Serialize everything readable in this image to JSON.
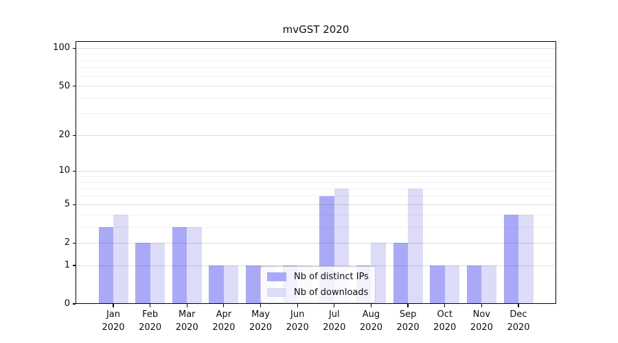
{
  "title": "mvGST 2020",
  "chart_data": {
    "type": "bar",
    "title": "mvGST 2020",
    "yscale": "log1p",
    "ylim": [
      0,
      114
    ],
    "yticks": [
      100,
      50,
      20,
      10,
      5,
      2,
      1,
      0
    ],
    "grid_major": [
      1,
      2,
      5,
      10,
      20,
      50,
      100
    ],
    "grid_minor": [
      3,
      4,
      6,
      7,
      8,
      9,
      30,
      40,
      60,
      70,
      80,
      90
    ],
    "categories": [
      "Jan",
      "Feb",
      "Mar",
      "Apr",
      "May",
      "Jun",
      "Jul",
      "Aug",
      "Sep",
      "Oct",
      "Nov",
      "Dec"
    ],
    "category_year": "2020",
    "legend_position": "lower center",
    "series": [
      {
        "name": "Nb of distinct IPs",
        "color": "#a9a9f8",
        "values": [
          3,
          2,
          3,
          1,
          1,
          1,
          6,
          1,
          2,
          1,
          1,
          4
        ]
      },
      {
        "name": "Nb of downloads",
        "color": "#dcdcf9",
        "values": [
          4,
          2,
          3,
          1,
          1,
          1,
          7,
          2,
          7,
          1,
          1,
          4
        ]
      }
    ]
  },
  "colors": {
    "ips_bar": "#a9a9f8",
    "downloads_bar": "#dcdcf9",
    "axis_frame": "#000000",
    "grid_major": "rgba(0,0,0,0.13)",
    "grid_minor": "rgba(0,0,0,0.055)",
    "legend_border": "#cccccc",
    "legend_bg": "rgba(255,255,255,0.85)"
  }
}
